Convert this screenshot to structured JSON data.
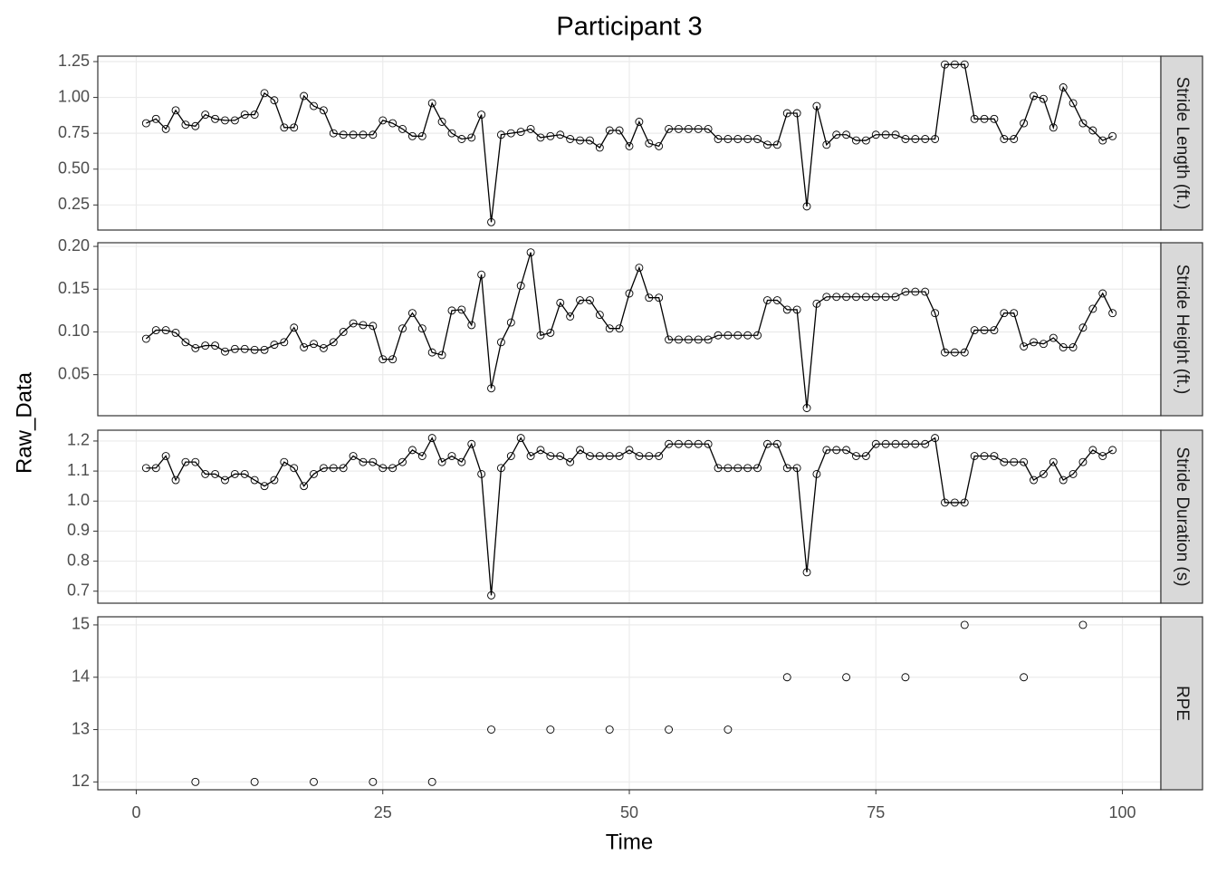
{
  "figure": {
    "title": "Participant 3",
    "x_label": "Time",
    "y_label": "Raw_Data",
    "xlim": [
      -3.9,
      103.9
    ],
    "xticks": [
      0,
      25,
      50,
      75,
      100
    ],
    "x": [
      1,
      2,
      3,
      4,
      5,
      6,
      7,
      8,
      9,
      10,
      11,
      12,
      13,
      14,
      15,
      16,
      17,
      18,
      19,
      20,
      21,
      22,
      23,
      24,
      25,
      26,
      27,
      28,
      29,
      30,
      31,
      32,
      33,
      34,
      35,
      36,
      37,
      38,
      39,
      40,
      41,
      42,
      43,
      44,
      45,
      46,
      47,
      48,
      49,
      50,
      51,
      52,
      53,
      54,
      55,
      56,
      57,
      58,
      59,
      60,
      61,
      62,
      63,
      64,
      65,
      66,
      67,
      68,
      69,
      70,
      71,
      72,
      73,
      74,
      75,
      76,
      77,
      78,
      79,
      80,
      81,
      82,
      83,
      84,
      85,
      86,
      87,
      88,
      89,
      90,
      91,
      92,
      93,
      94,
      95,
      96,
      97,
      98,
      99
    ]
  },
  "chart_data": [
    {
      "type": "line",
      "facet": "Stride Length (ft.)",
      "ylim": [
        0.075,
        1.288
      ],
      "yticks": [
        0.25,
        {
          "value": 0.5,
          "label": "0.50"
        },
        0.75,
        {
          "value": 1,
          "label": "1.00"
        },
        1.25
      ],
      "color": "#000000",
      "values": [
        0.82,
        0.85,
        0.78,
        0.91,
        0.81,
        0.8,
        0.88,
        0.85,
        0.84,
        0.84,
        0.88,
        0.88,
        1.03,
        0.98,
        0.79,
        0.79,
        1.01,
        0.94,
        0.91,
        0.75,
        0.74,
        0.74,
        0.74,
        0.74,
        0.84,
        0.82,
        0.78,
        0.73,
        0.73,
        0.96,
        0.83,
        0.75,
        0.71,
        0.72,
        0.88,
        0.13,
        0.74,
        0.75,
        0.76,
        0.78,
        0.72,
        0.73,
        0.74,
        0.71,
        0.7,
        0.7,
        0.65,
        0.77,
        0.77,
        0.66,
        0.83,
        0.68,
        0.66,
        0.78,
        0.78,
        0.78,
        0.78,
        0.78,
        0.71,
        0.71,
        0.71,
        0.71,
        0.71,
        0.67,
        0.67,
        0.89,
        0.89,
        0.24,
        0.94,
        0.67,
        0.74,
        0.74,
        0.7,
        0.7,
        0.74,
        0.74,
        0.74,
        0.71,
        0.71,
        0.71,
        0.71,
        1.23,
        1.23,
        1.23,
        0.85,
        0.85,
        0.85,
        0.71,
        0.71,
        0.82,
        1.01,
        0.99,
        0.79,
        1.07,
        0.96,
        0.82,
        0.77,
        0.7,
        0.73
      ]
    },
    {
      "type": "line",
      "facet": "Stride Height (ft.)",
      "ylim": [
        0.002,
        0.2043
      ],
      "yticks": [
        0.05,
        {
          "value": 0.1,
          "label": "0.10"
        },
        0.15,
        {
          "value": 0.2,
          "label": "0.20"
        }
      ],
      "color": "#000000",
      "values": [
        0.092,
        0.102,
        0.102,
        0.099,
        0.088,
        0.081,
        0.084,
        0.084,
        0.077,
        0.08,
        0.08,
        0.079,
        0.079,
        0.085,
        0.088,
        0.105,
        0.082,
        0.086,
        0.081,
        0.088,
        0.1,
        0.11,
        0.108,
        0.107,
        0.068,
        0.068,
        0.104,
        0.122,
        0.104,
        0.076,
        0.073,
        0.125,
        0.126,
        0.108,
        0.167,
        0.034,
        0.088,
        0.111,
        0.154,
        0.193,
        0.096,
        0.099,
        0.134,
        0.118,
        0.137,
        0.137,
        0.12,
        0.104,
        0.104,
        0.145,
        0.175,
        0.14,
        0.14,
        0.091,
        0.091,
        0.091,
        0.091,
        0.091,
        0.096,
        0.096,
        0.096,
        0.096,
        0.096,
        0.137,
        0.137,
        0.126,
        0.126,
        0.011,
        0.133,
        0.141,
        0.141,
        0.141,
        0.141,
        0.141,
        0.141,
        0.141,
        0.141,
        0.147,
        0.147,
        0.147,
        0.122,
        0.076,
        0.076,
        0.076,
        0.102,
        0.102,
        0.102,
        0.122,
        0.122,
        0.083,
        0.088,
        0.086,
        0.093,
        0.082,
        0.082,
        0.105,
        0.127,
        0.145,
        0.122
      ]
    },
    {
      "type": "line",
      "facet": "Stride Duration (s)",
      "ylim": [
        0.66,
        1.236
      ],
      "yticks": [
        0.7,
        0.8,
        0.9,
        {
          "value": 1,
          "label": "1.0"
        },
        1.1,
        1.2
      ],
      "color": "#000000",
      "values": [
        1.11,
        1.11,
        1.15,
        1.07,
        1.13,
        1.13,
        1.09,
        1.09,
        1.07,
        1.09,
        1.09,
        1.07,
        1.05,
        1.07,
        1.13,
        1.11,
        1.05,
        1.09,
        1.11,
        1.11,
        1.11,
        1.15,
        1.13,
        1.13,
        1.11,
        1.11,
        1.13,
        1.17,
        1.15,
        1.21,
        1.13,
        1.15,
        1.13,
        1.19,
        1.09,
        0.686,
        1.11,
        1.15,
        1.21,
        1.15,
        1.17,
        1.15,
        1.15,
        1.13,
        1.17,
        1.15,
        1.15,
        1.15,
        1.15,
        1.17,
        1.15,
        1.15,
        1.15,
        1.19,
        1.19,
        1.19,
        1.19,
        1.19,
        1.11,
        1.11,
        1.11,
        1.11,
        1.11,
        1.19,
        1.19,
        1.11,
        1.11,
        0.763,
        1.09,
        1.17,
        1.17,
        1.17,
        1.15,
        1.15,
        1.19,
        1.19,
        1.19,
        1.19,
        1.19,
        1.19,
        1.21,
        0.995,
        0.995,
        0.995,
        1.15,
        1.15,
        1.15,
        1.13,
        1.13,
        1.13,
        1.07,
        1.09,
        1.13,
        1.07,
        1.09,
        1.13,
        1.17,
        1.15,
        1.17
      ]
    },
    {
      "type": "scatter",
      "facet": "RPE",
      "ylim": [
        11.85,
        15.155
      ],
      "yticks": [
        12,
        13,
        14,
        15
      ],
      "color": "#000000",
      "x": [
        6,
        12,
        18,
        24,
        30,
        36,
        42,
        48,
        54,
        60,
        66,
        72,
        78,
        84,
        90,
        96
      ],
      "values": [
        12,
        12,
        12,
        12,
        12,
        13,
        13,
        13,
        13,
        13,
        14,
        14,
        14,
        15,
        14,
        15
      ]
    }
  ]
}
